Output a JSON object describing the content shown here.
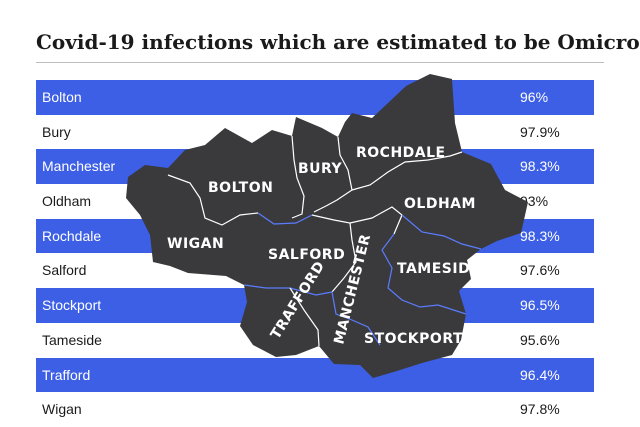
{
  "header": {
    "title": "Covid-19 infections which are estimated to be Omicron"
  },
  "colors": {
    "stripe": "#3d5fe6",
    "map_fill": "#3a3a3c",
    "boundary": "#ffffff",
    "boundary_alt": "#5b7cff"
  },
  "chart_data": {
    "type": "table",
    "title": "Covid-19 infections which are estimated to be Omicron",
    "categories": [
      "Bolton",
      "Bury",
      "Manchester",
      "Oldham",
      "Rochdale",
      "Salford",
      "Stockport",
      "Tameside",
      "Trafford",
      "Wigan"
    ],
    "values": [
      "96%",
      "97.9%",
      "98.3%",
      "93%",
      "98.3%",
      "97.6%",
      "96.5%",
      "95.6%",
      "96.4%",
      "97.8%"
    ]
  },
  "map": {
    "labels": {
      "bolton": "BOLTON",
      "bury": "BURY",
      "rochdale": "ROCHDALE",
      "oldham": "OLDHAM",
      "wigan": "WIGAN",
      "salford": "SALFORD",
      "manchester": "MANCHESTER",
      "tameside": "TAMESIDE",
      "trafford": "TRAFFORD",
      "stockport": "STOCKPORT"
    }
  }
}
